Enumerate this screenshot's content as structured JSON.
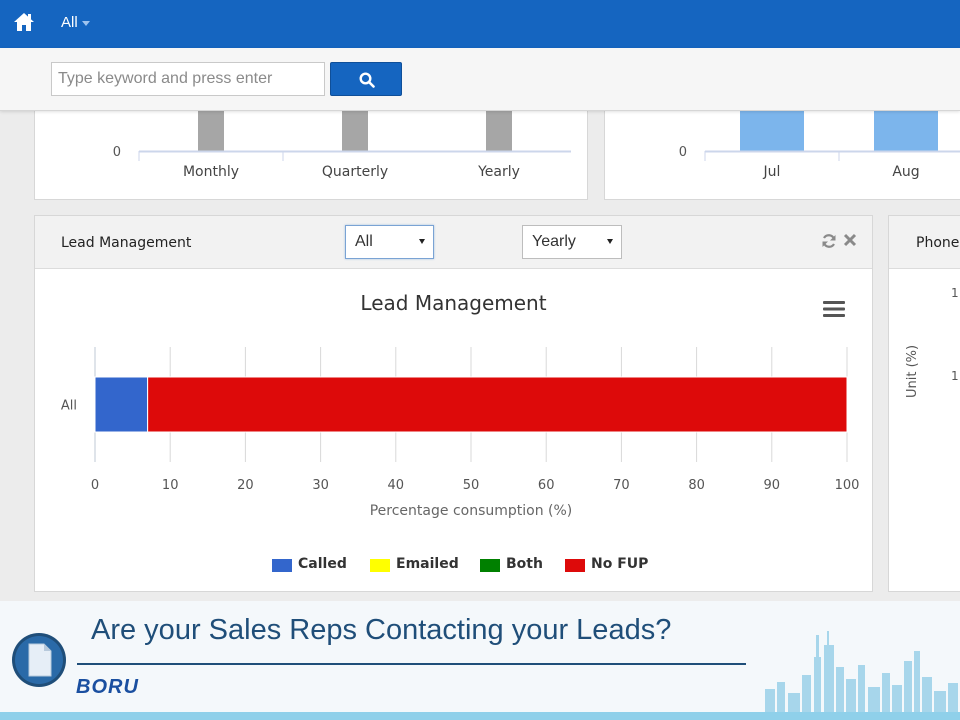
{
  "nav": {
    "filter_label": "All"
  },
  "search": {
    "placeholder": "Type keyword and press enter",
    "value": ""
  },
  "top_left_chart": {
    "zero_label": "0",
    "categories": [
      "Monthly",
      "Quarterly",
      "Yearly"
    ],
    "bar_color": "#a6a6a6"
  },
  "top_right_chart": {
    "zero_label": "0",
    "categories": [
      "Jul",
      "Aug"
    ],
    "bar_color": "#7cb5ec"
  },
  "lead_panel": {
    "title": "Lead Management",
    "group_select": {
      "selected": "All"
    },
    "period_select": {
      "selected": "Yearly"
    }
  },
  "chart_data": {
    "type": "bar",
    "orientation": "horizontal",
    "stacked": true,
    "title": "Lead Management",
    "categories": [
      "All"
    ],
    "series": [
      {
        "name": "Called",
        "color": "#3366cc",
        "values": [
          7
        ]
      },
      {
        "name": "Emailed",
        "color": "#ffff00",
        "values": [
          0
        ]
      },
      {
        "name": "Both",
        "color": "#008000",
        "values": [
          0
        ]
      },
      {
        "name": "No FUP",
        "color": "#dd0a0a",
        "values": [
          93
        ]
      }
    ],
    "xlabel": "Percentage consumption (%)",
    "xlim": [
      0,
      100
    ],
    "x_ticks": [
      0,
      10,
      20,
      30,
      40,
      50,
      60,
      70,
      80,
      90,
      100
    ],
    "grid": true,
    "legend_position": "bottom"
  },
  "phone_panel": {
    "title": "Phone",
    "axis_label": "Unit (%)",
    "tick_labels": [
      "1",
      "1"
    ]
  },
  "banner": {
    "headline": "Are your Sales Reps Contacting your Leads?",
    "logo_text": "BORU",
    "accent_color": "#1f4e79"
  }
}
